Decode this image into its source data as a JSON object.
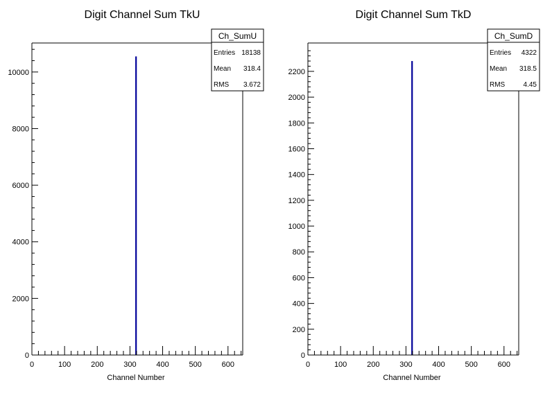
{
  "chart_data": [
    {
      "type": "bar",
      "title": "Digit Channel Sum TkU",
      "xlabel": "Channel Number",
      "ylabel": "",
      "xlim": [
        0,
        645
      ],
      "ylim": [
        0,
        11025
      ],
      "x_ticks": [
        0,
        100,
        200,
        300,
        400,
        500,
        600
      ],
      "y_ticks": [
        0,
        2000,
        4000,
        6000,
        8000,
        10000
      ],
      "bins": [
        {
          "x": 318.4,
          "value": 10550
        }
      ],
      "bar_color": "#000099",
      "grid": false,
      "stats_box": {
        "name": "Ch_SumU",
        "entries_label": "Entries",
        "entries": "18138",
        "mean_label": "Mean",
        "mean": "318.4",
        "rms_label": "RMS",
        "rms": "3.672"
      }
    },
    {
      "type": "bar",
      "title": "Digit Channel Sum TkD",
      "xlabel": "Channel Number",
      "ylabel": "",
      "xlim": [
        0,
        645
      ],
      "ylim": [
        0,
        2420
      ],
      "x_ticks": [
        0,
        100,
        200,
        300,
        400,
        500,
        600
      ],
      "y_ticks": [
        0,
        200,
        400,
        600,
        800,
        1000,
        1200,
        1400,
        1600,
        1800,
        2000,
        2200
      ],
      "bins": [
        {
          "x": 318.5,
          "value": 2280
        }
      ],
      "bar_color": "#000099",
      "grid": false,
      "stats_box": {
        "name": "Ch_SumD",
        "entries_label": "Entries",
        "entries": "4322",
        "mean_label": "Mean",
        "mean": "318.5",
        "rms_label": "RMS",
        "rms": "4.45"
      }
    }
  ]
}
